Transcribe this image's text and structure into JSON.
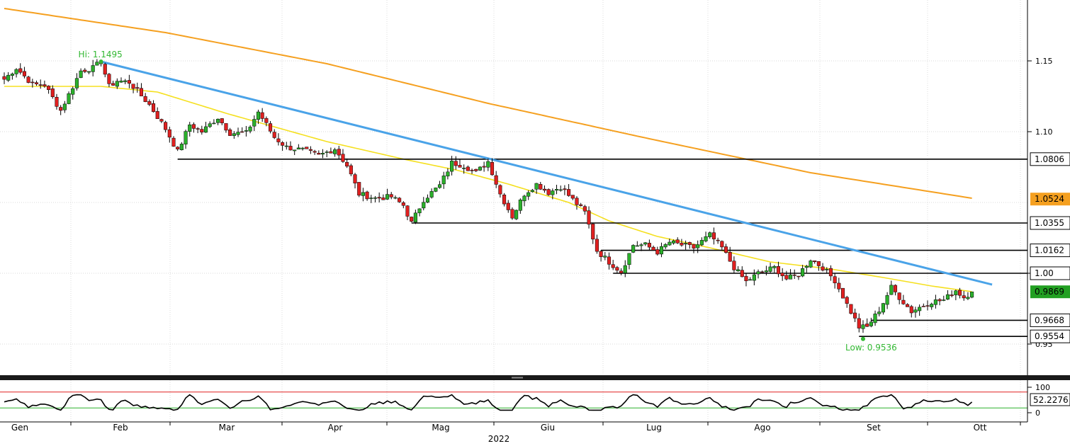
{
  "chart_data": {
    "type": "candlestick",
    "title": "",
    "year_label": "2022",
    "ylim": [
      0.928,
      1.193
    ],
    "yticks": [
      {
        "value": 1.15,
        "label": "1.15"
      },
      {
        "value": 1.1,
        "label": "1.10"
      },
      {
        "value": 1.0,
        "label": "1.00"
      },
      {
        "value": 0.95,
        "label": "0.95"
      }
    ],
    "months": [
      "Gen",
      "Feb",
      "Mar",
      "Apr",
      "Mag",
      "Giu",
      "Lug",
      "Ago",
      "Set",
      "Ott"
    ],
    "anchors": [
      [
        0,
        1.137
      ],
      [
        3,
        1.145
      ],
      [
        7,
        1.1335
      ],
      [
        10,
        1.133
      ],
      [
        14,
        1.115
      ],
      [
        19,
        1.143
      ],
      [
        22,
        1.145
      ],
      [
        24,
        1.1495
      ],
      [
        26,
        1.132
      ],
      [
        28,
        1.136
      ],
      [
        31,
        1.135
      ],
      [
        36,
        1.119
      ],
      [
        40,
        1.102
      ],
      [
        43,
        1.086
      ],
      [
        46,
        1.105
      ],
      [
        49,
        1.1
      ],
      [
        53,
        1.11
      ],
      [
        56,
        1.099
      ],
      [
        60,
        1.099
      ],
      [
        63,
        1.114
      ],
      [
        67,
        1.096
      ],
      [
        70,
        1.089
      ],
      [
        74,
        1.087
      ],
      [
        78,
        1.083
      ],
      [
        82,
        1.088
      ],
      [
        85,
        1.076
      ],
      [
        88,
        1.056
      ],
      [
        92,
        1.053
      ],
      [
        96,
        1.054
      ],
      [
        99,
        1.048
      ],
      [
        101,
        1.0355
      ],
      [
        104,
        1.052
      ],
      [
        108,
        1.062
      ],
      [
        111,
        1.078
      ],
      [
        114,
        1.076
      ],
      [
        117,
        1.071
      ],
      [
        120,
        1.079
      ],
      [
        123,
        1.056
      ],
      [
        126,
        1.04
      ],
      [
        129,
        1.056
      ],
      [
        132,
        1.063
      ],
      [
        135,
        1.057
      ],
      [
        138,
        1.061
      ],
      [
        141,
        1.052
      ],
      [
        144,
        1.043
      ],
      [
        147,
        1.016
      ],
      [
        150,
        1.008
      ],
      [
        153,
        1.001
      ],
      [
        156,
        1.02
      ],
      [
        159,
        1.02
      ],
      [
        162,
        1.015
      ],
      [
        165,
        1.022
      ],
      [
        168,
        1.02
      ],
      [
        171,
        1.018
      ],
      [
        175,
        1.027
      ],
      [
        178,
        1.018
      ],
      [
        181,
        1.004
      ],
      [
        184,
        0.994
      ],
      [
        187,
        1.0
      ],
      [
        191,
        1.004
      ],
      [
        194,
        0.996
      ],
      [
        197,
        0.999
      ],
      [
        200,
        1.01
      ],
      [
        203,
        1.004
      ],
      [
        206,
        0.995
      ],
      [
        209,
        0.978
      ],
      [
        212,
        0.962
      ],
      [
        214,
        0.962
      ],
      [
        217,
        0.974
      ],
      [
        220,
        0.99
      ],
      [
        222,
        0.983
      ],
      [
        225,
        0.973
      ],
      [
        227,
        0.976
      ],
      [
        230,
        0.98
      ],
      [
        233,
        0.981
      ],
      [
        236,
        0.988
      ],
      [
        238,
        0.983
      ],
      [
        240,
        0.9869
      ]
    ],
    "ma50": [
      [
        0,
        1.132
      ],
      [
        24,
        1.132
      ],
      [
        38,
        1.128
      ],
      [
        55,
        1.113
      ],
      [
        80,
        1.093
      ],
      [
        100,
        1.08
      ],
      [
        112,
        1.073
      ],
      [
        125,
        1.063
      ],
      [
        140,
        1.05
      ],
      [
        150,
        1.037
      ],
      [
        162,
        1.026
      ],
      [
        175,
        1.018
      ],
      [
        190,
        1.008
      ],
      [
        205,
        1.003
      ],
      [
        218,
        0.997
      ],
      [
        230,
        0.991
      ],
      [
        240,
        0.987
      ]
    ],
    "ma200": [
      [
        0,
        1.187
      ],
      [
        40,
        1.17
      ],
      [
        80,
        1.148
      ],
      [
        120,
        1.12
      ],
      [
        160,
        1.095
      ],
      [
        200,
        1.071
      ],
      [
        240,
        1.053
      ]
    ],
    "trendline": {
      "from": [
        24,
        1.1495
      ],
      "to": [
        245,
        0.992
      ],
      "color": "#4aa3e8"
    },
    "levels": [
      {
        "value": 1.0806,
        "label": "1.0806",
        "from": 43
      },
      {
        "value": 1.0355,
        "label": "1.0355",
        "from": 101
      },
      {
        "value": 1.0162,
        "label": "1.0162",
        "from": 148
      },
      {
        "value": 1.0,
        "label": "1.00",
        "from": 151
      },
      {
        "value": 0.9668,
        "label": "0.9668",
        "from": 215
      },
      {
        "value": 0.9554,
        "label": "0.9554",
        "from": 212
      }
    ],
    "value_tags": [
      {
        "value": 1.0524,
        "label": "1.0524",
        "color": "#f5a020"
      },
      {
        "value": 0.9869,
        "label": "0.9869",
        "color": "#22a022"
      }
    ],
    "annotations": [
      {
        "text": "Hi: 1.1495",
        "x": 24,
        "y": 1.1495,
        "color": "#33b833"
      },
      {
        "text": "Low: 0.9536",
        "x": 213,
        "y": 0.9536,
        "color": "#33b833"
      }
    ],
    "colors": {
      "up": "#2bb02b",
      "down": "#e02020",
      "ma50": "#f5e020",
      "ma200": "#f5a020"
    },
    "rsi": {
      "value_label": "52.2276",
      "yticks": [
        {
          "value": 100,
          "label": "100"
        },
        {
          "value": 0,
          "label": "0"
        }
      ],
      "overbought": 70,
      "oversold": 30,
      "overbought_color": "#e02020",
      "oversold_color": "#2bb02b"
    }
  }
}
